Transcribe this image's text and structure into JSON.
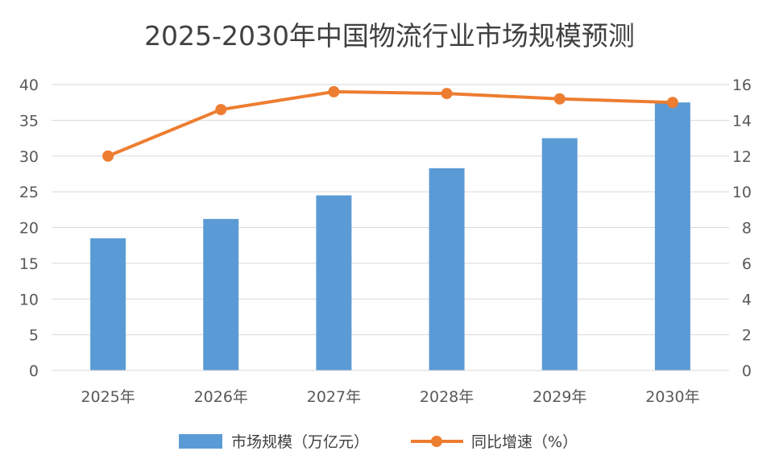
{
  "chart_data": {
    "type": "bar",
    "title": "2025-2030年中国物流行业市场规模预测",
    "categories": [
      "2025年",
      "2026年",
      "2027年",
      "2028年",
      "2029年",
      "2030年"
    ],
    "series": [
      {
        "name": "市场规模（万亿元）",
        "type": "bar",
        "axis": "left",
        "values": [
          18.5,
          21.2,
          24.5,
          28.3,
          32.5,
          37.5
        ],
        "color": "#5B9BD5"
      },
      {
        "name": "同比增速（%）",
        "type": "line",
        "axis": "right",
        "values": [
          12.0,
          14.6,
          15.6,
          15.5,
          15.2,
          15.0
        ],
        "color": "#ED7D31"
      }
    ],
    "y_left": {
      "ylim": [
        0,
        40
      ],
      "ticks": [
        0,
        5,
        10,
        15,
        20,
        25,
        30,
        35,
        40
      ]
    },
    "y_right": {
      "ylim": [
        0,
        16
      ],
      "ticks": [
        0,
        2,
        4,
        6,
        8,
        10,
        12,
        14,
        16
      ]
    },
    "grid": true,
    "legend_position": "bottom",
    "gridline_color": "#D9D9D9"
  }
}
